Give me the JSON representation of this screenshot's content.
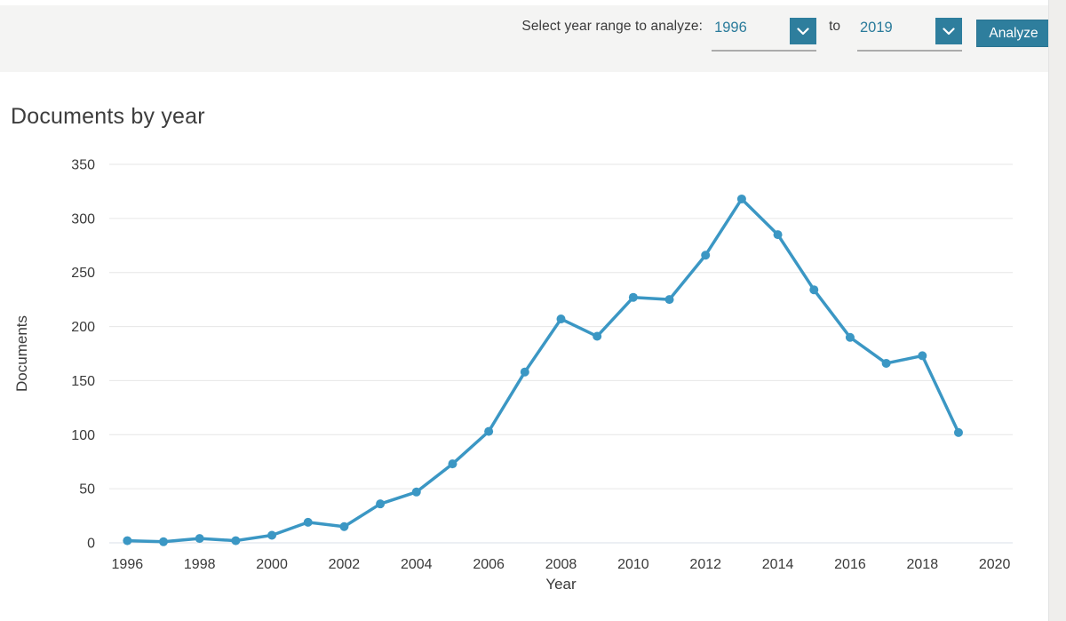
{
  "header": {
    "label": "Select year range to analyze:",
    "from_year": "1996",
    "to_label": "to",
    "to_year": "2019",
    "analyze_label": "Analyze"
  },
  "page": {
    "title": "Documents by year"
  },
  "chart_data": {
    "type": "line",
    "title": "Documents by year",
    "xlabel": "Year",
    "ylabel": "Documents",
    "x": [
      1996,
      1997,
      1998,
      1999,
      2000,
      2001,
      2002,
      2003,
      2004,
      2005,
      2006,
      2007,
      2008,
      2009,
      2010,
      2011,
      2012,
      2013,
      2014,
      2015,
      2016,
      2017,
      2018,
      2019
    ],
    "values": [
      2,
      1,
      4,
      2,
      7,
      19,
      15,
      36,
      47,
      73,
      103,
      158,
      207,
      191,
      227,
      225,
      266,
      318,
      285,
      234,
      190,
      166,
      173,
      102
    ],
    "ylim": [
      0,
      350
    ],
    "ytick_step": 50,
    "xticks": [
      1996,
      1998,
      2000,
      2002,
      2004,
      2006,
      2008,
      2010,
      2012,
      2014,
      2016,
      2018,
      2020
    ],
    "xlim": [
      1995.5,
      2020.5
    ],
    "grid": true,
    "legend": "none",
    "line_color": "#3b97c4",
    "marker": "circle"
  },
  "icons": {
    "chevron_down": "chevron-down-icon"
  },
  "colors": {
    "accent": "#2e7e9d",
    "accent_text": "#2a7b9b",
    "header_bg": "#f4f4f3",
    "text_dark": "#3a3a3a",
    "grid": "#e6e6e6",
    "zero_line": "#d9dfe8"
  }
}
